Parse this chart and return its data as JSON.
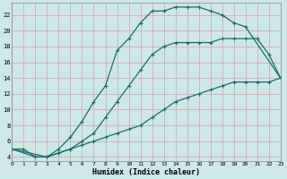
{
  "xlabel": "Humidex (Indice chaleur)",
  "background_color": "#cce8e8",
  "grid_color": "#b0d0d0",
  "line_color": "#1a6e6a",
  "xlim": [
    0,
    23
  ],
  "ylim": [
    3.5,
    23.5
  ],
  "xticks": [
    0,
    1,
    2,
    3,
    4,
    5,
    6,
    7,
    8,
    9,
    10,
    11,
    12,
    13,
    14,
    15,
    16,
    17,
    18,
    19,
    20,
    21,
    22,
    23
  ],
  "yticks": [
    4,
    6,
    8,
    10,
    12,
    14,
    16,
    18,
    20,
    22
  ],
  "series": [
    {
      "x": [
        0,
        1,
        2,
        3,
        4,
        5,
        6,
        7,
        8,
        9,
        10,
        11,
        12,
        13,
        14,
        15,
        16,
        17,
        18,
        19,
        20,
        23
      ],
      "y": [
        5,
        5,
        4,
        4,
        5,
        6.5,
        8.5,
        11,
        13,
        17.5,
        19,
        21,
        22.5,
        22.5,
        23,
        23,
        23,
        22.5,
        22,
        21,
        20.5,
        14
      ],
      "linestyle": "-"
    },
    {
      "x": [
        0,
        3,
        4,
        5,
        6,
        7,
        8,
        9,
        10,
        11,
        12,
        13,
        14,
        15,
        16,
        17,
        18,
        19,
        20,
        21,
        22,
        23
      ],
      "y": [
        5,
        4,
        4.5,
        5,
        6,
        7,
        9,
        11,
        13,
        15,
        17,
        18,
        18.5,
        18.5,
        18.5,
        18.5,
        19,
        19,
        19,
        19,
        17,
        14
      ],
      "linestyle": "-"
    },
    {
      "x": [
        0,
        2,
        3,
        4,
        5,
        6,
        7,
        8,
        9,
        10,
        11,
        12,
        13,
        14,
        15,
        16,
        17,
        18,
        19,
        20,
        21,
        22,
        23
      ],
      "y": [
        5,
        4,
        4,
        4.5,
        5,
        5.5,
        6,
        6.5,
        7,
        7.5,
        8,
        9,
        10,
        11,
        11.5,
        12,
        12.5,
        13,
        13.5,
        13.5,
        13.5,
        13.5,
        14
      ],
      "linestyle": "-"
    }
  ]
}
